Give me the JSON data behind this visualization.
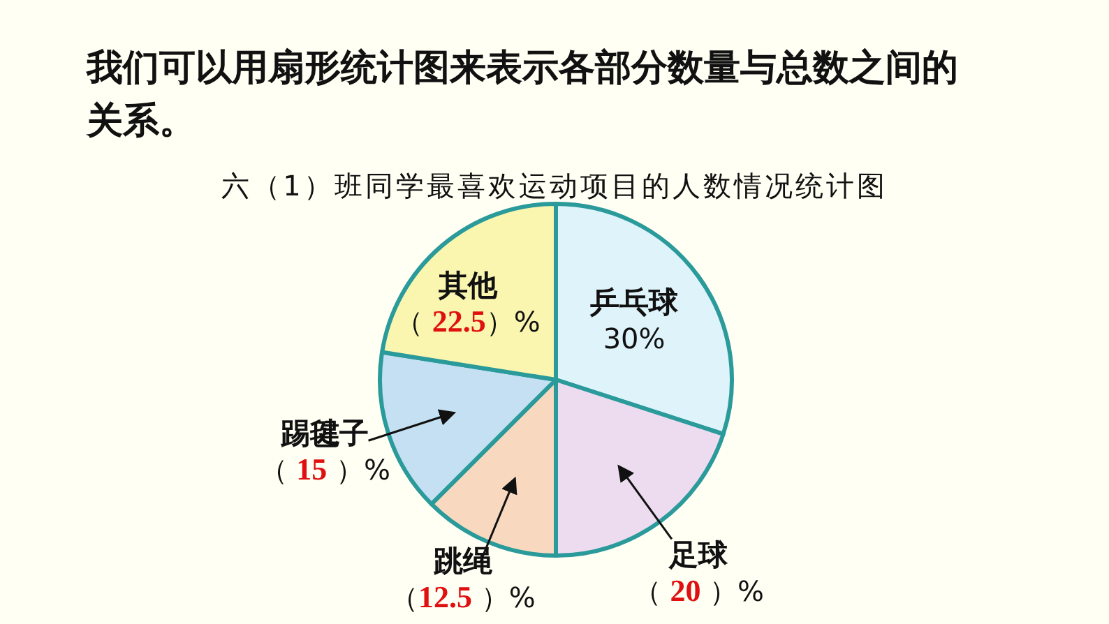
{
  "chart_data": {
    "type": "pie",
    "title": "我们可以用扇形统计图来表示各部分数量与总数之间的关系。",
    "subtitle": "六（1）班同学最喜欢运动项目的人数情况统计图",
    "categories": [
      "乒乓球",
      "足球",
      "跳绳",
      "踢毽子",
      "其他"
    ],
    "values": [
      30,
      20,
      12.5,
      15,
      22.5
    ],
    "value_labels": [
      "30%",
      "（ 20 ）%",
      "（12.5 ）%",
      "（ 15 ）%",
      "（ 22.5）%"
    ],
    "colors": [
      "#def3fa",
      "#eddcf0",
      "#f8d9c0",
      "#c4e0f2",
      "#faf6b0"
    ]
  }
}
